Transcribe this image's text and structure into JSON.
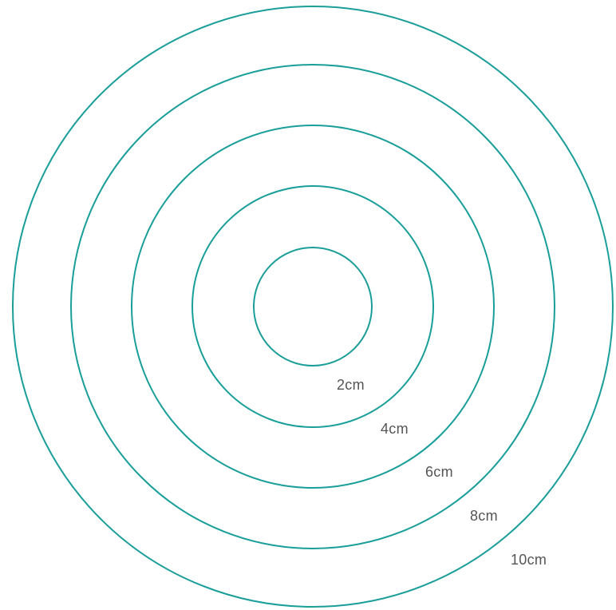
{
  "diagram": {
    "stroke_color": "#1a9e9a",
    "label_color": "#555555",
    "rings": [
      {
        "label": "2cm"
      },
      {
        "label": "4cm"
      },
      {
        "label": "6cm"
      },
      {
        "label": "8cm"
      },
      {
        "label": "10cm"
      }
    ]
  }
}
